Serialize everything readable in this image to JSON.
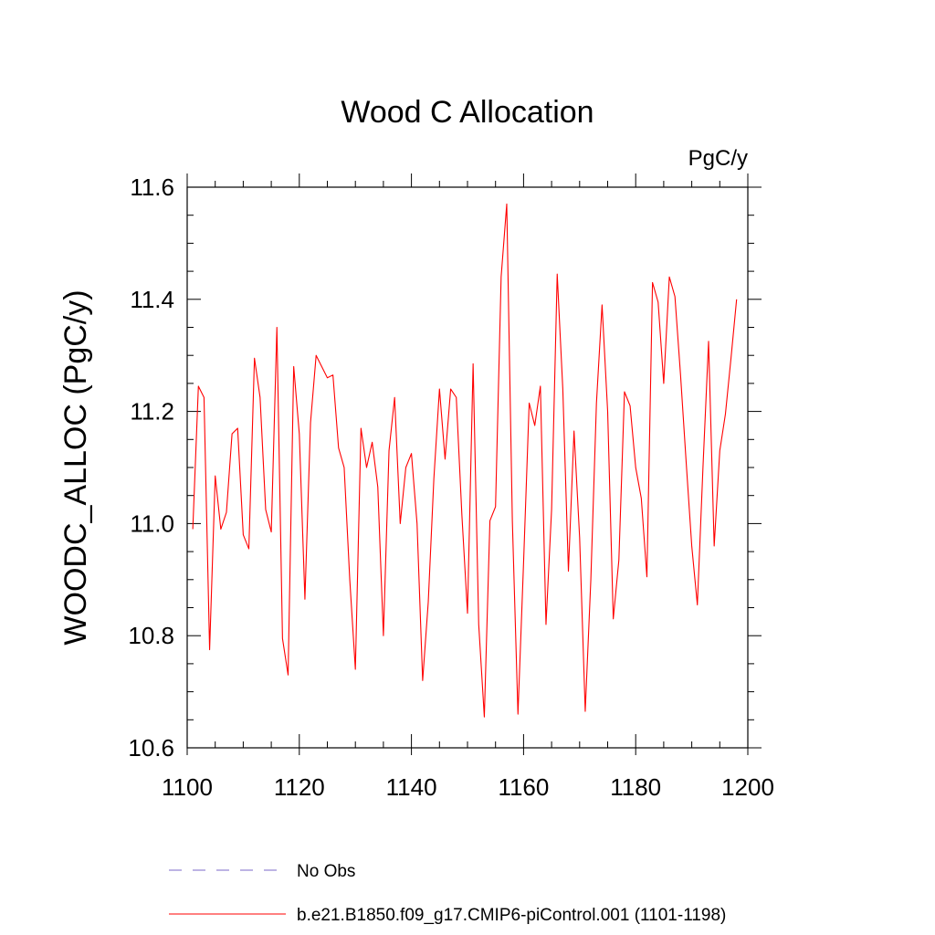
{
  "chart_data": {
    "type": "line",
    "title": "Wood C Allocation",
    "units": "PgC/y",
    "xlabel": "",
    "ylabel": "WOODC_ALLOC  (PgC/y)",
    "xlim": [
      1100,
      1200
    ],
    "ylim": [
      10.6,
      11.6
    ],
    "x_ticks": [
      1100,
      1120,
      1140,
      1160,
      1180,
      1200
    ],
    "y_ticks": [
      10.6,
      10.8,
      11.0,
      11.2,
      11.4,
      11.6
    ],
    "x_tick_labels": [
      "1100",
      "1120",
      "1140",
      "1160",
      "1180",
      "1200"
    ],
    "y_tick_labels": [
      "10.6",
      "10.8",
      "11.0",
      "11.2",
      "11.4",
      "11.6"
    ],
    "series": [
      {
        "name": "b.e21.B1850.f09_g17.CMIP6-piControl.001 (1101-1198)",
        "color": "#ff0000",
        "style": "solid",
        "x": [
          1101,
          1102,
          1103,
          1104,
          1105,
          1106,
          1107,
          1108,
          1109,
          1110,
          1111,
          1112,
          1113,
          1114,
          1115,
          1116,
          1117,
          1118,
          1119,
          1120,
          1121,
          1122,
          1123,
          1124,
          1125,
          1126,
          1127,
          1128,
          1129,
          1130,
          1131,
          1132,
          1133,
          1134,
          1135,
          1136,
          1137,
          1138,
          1139,
          1140,
          1141,
          1142,
          1143,
          1144,
          1145,
          1146,
          1147,
          1148,
          1149,
          1150,
          1151,
          1152,
          1153,
          1154,
          1155,
          1156,
          1157,
          1158,
          1159,
          1160,
          1161,
          1162,
          1163,
          1164,
          1165,
          1166,
          1167,
          1168,
          1169,
          1170,
          1171,
          1172,
          1173,
          1174,
          1175,
          1176,
          1177,
          1178,
          1179,
          1180,
          1181,
          1182,
          1183,
          1184,
          1185,
          1186,
          1187,
          1188,
          1189,
          1190,
          1191,
          1192,
          1193,
          1194,
          1195,
          1196,
          1197,
          1198
        ],
        "values": [
          10.99,
          11.245,
          11.225,
          10.775,
          11.085,
          10.99,
          11.02,
          11.16,
          11.17,
          10.98,
          10.955,
          11.295,
          11.225,
          11.025,
          10.985,
          11.35,
          10.795,
          10.73,
          11.28,
          11.16,
          10.865,
          11.18,
          11.3,
          11.28,
          11.26,
          11.265,
          11.135,
          11.1,
          10.9,
          10.74,
          11.17,
          11.1,
          11.145,
          11.065,
          10.8,
          11.13,
          11.225,
          11.0,
          11.1,
          11.125,
          11.0,
          10.72,
          10.86,
          11.08,
          11.24,
          11.115,
          11.24,
          11.225,
          11.015,
          10.84,
          11.285,
          10.82,
          10.655,
          11.005,
          11.03,
          11.44,
          11.57,
          11.005,
          10.66,
          10.93,
          11.215,
          11.175,
          11.245,
          10.82,
          11.025,
          11.445,
          11.24,
          10.915,
          11.165,
          10.975,
          10.665,
          10.9,
          11.215,
          11.39,
          11.2,
          10.83,
          10.935,
          11.235,
          11.21,
          11.1,
          11.045,
          10.905,
          11.43,
          11.395,
          11.25,
          11.44,
          11.405,
          11.265,
          11.11,
          10.96,
          10.855,
          11.1,
          11.325,
          10.96,
          11.13,
          11.195,
          11.295,
          11.4
        ]
      },
      {
        "name": "No Obs",
        "color": "#7b68c8",
        "style": "dashed",
        "x": [],
        "values": []
      }
    ],
    "legend_position": "bottom-left"
  }
}
